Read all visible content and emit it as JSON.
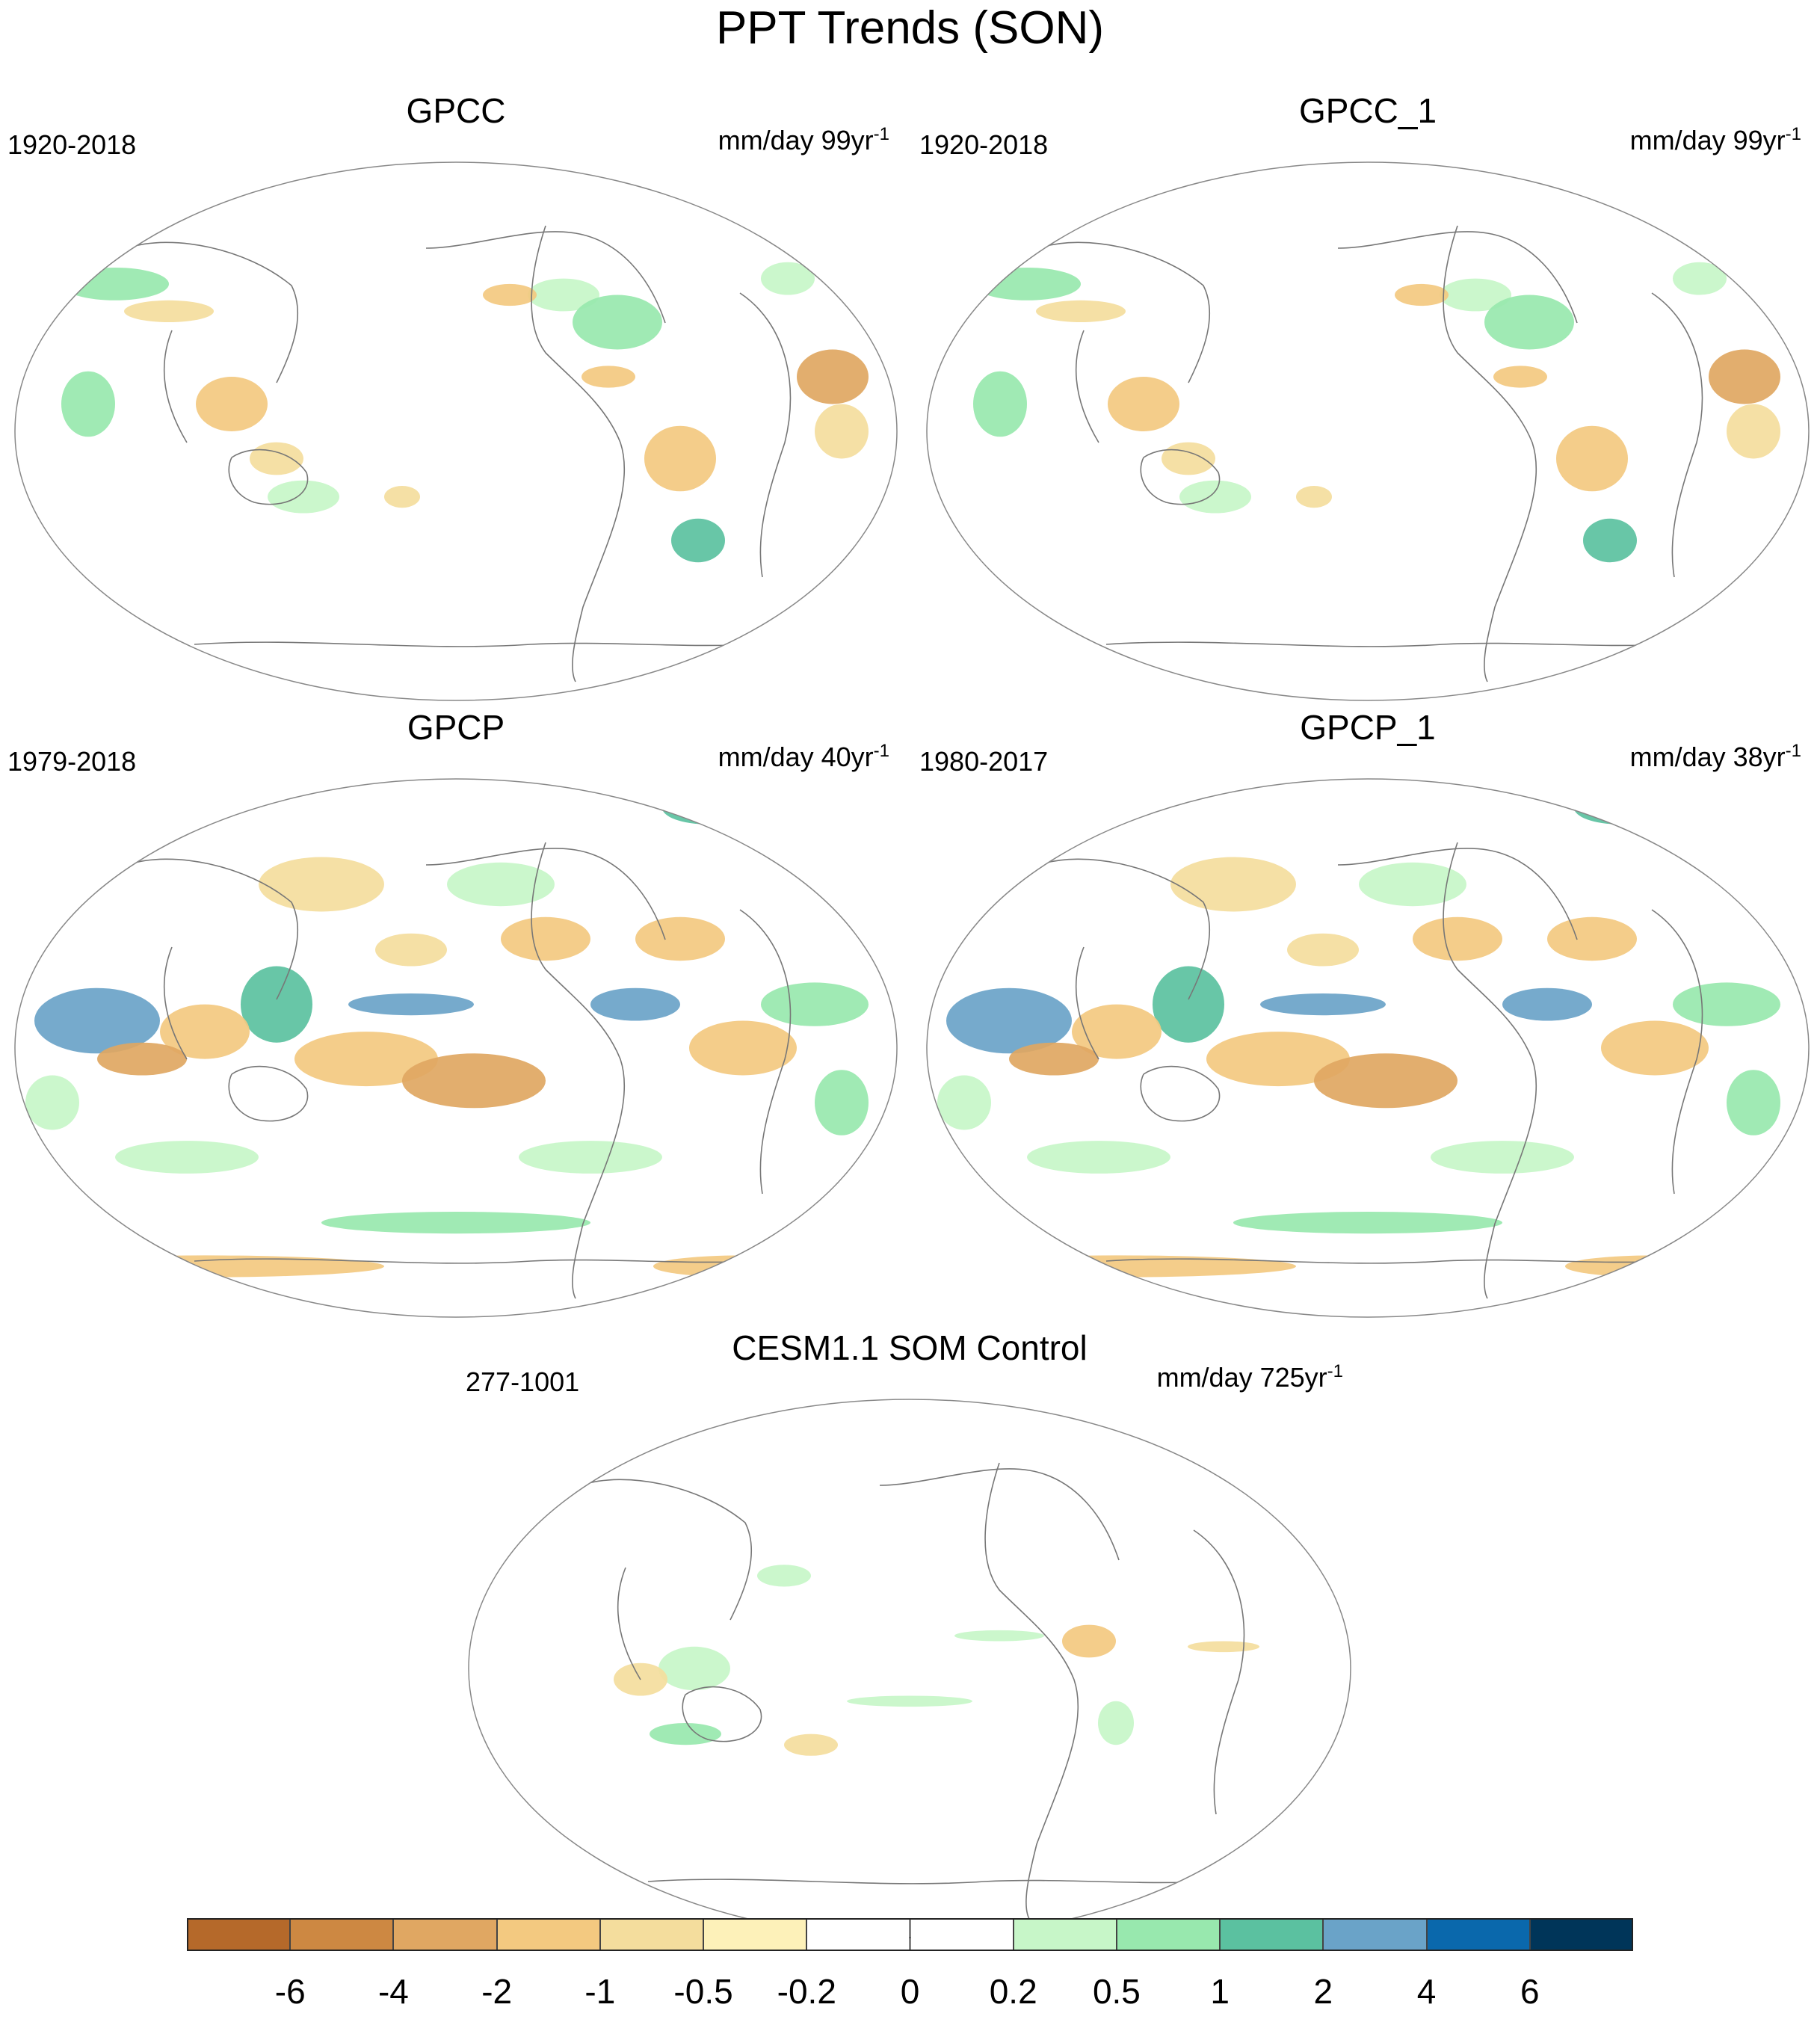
{
  "figure": {
    "title": "PPT Trends (SON)"
  },
  "panels": [
    {
      "title": "GPCC",
      "period": "1920-2018",
      "units": "mm/day 99yr",
      "units_exp": "-1",
      "regime": "sparse"
    },
    {
      "title": "GPCC_1",
      "period": "1920-2018",
      "units": "mm/day 99yr",
      "units_exp": "-1",
      "regime": "sparse"
    },
    {
      "title": "GPCP",
      "period": "1979-2018",
      "units": "mm/day 40yr",
      "units_exp": "-1",
      "regime": "dense"
    },
    {
      "title": "GPCP_1",
      "period": "1980-2017",
      "units": "mm/day 38yr",
      "units_exp": "-1",
      "regime": "dense"
    },
    {
      "title": "CESM1.1 SOM Control",
      "period": "277-1001",
      "units": "mm/day 725yr",
      "units_exp": "-1",
      "regime": "weak"
    }
  ],
  "colorbar": {
    "colors": [
      "#b5692a",
      "#cd8842",
      "#e0a762",
      "#f3c980",
      "#f4dd9d",
      "#fdf1b9",
      "#ffffff",
      "#ffffff",
      "#c7f6c8",
      "#98e8ae",
      "#5bc1a0",
      "#6aa3c8",
      "#0a68ac",
      "#003559"
    ],
    "labels": [
      "-6",
      "-4",
      "-2",
      "-1",
      "-0.5",
      "-0.2",
      "0",
      "0.2",
      "0.5",
      "1",
      "2",
      "4",
      "6"
    ]
  },
  "icons": {
    "map_style": "robinson-projection-world-map"
  }
}
